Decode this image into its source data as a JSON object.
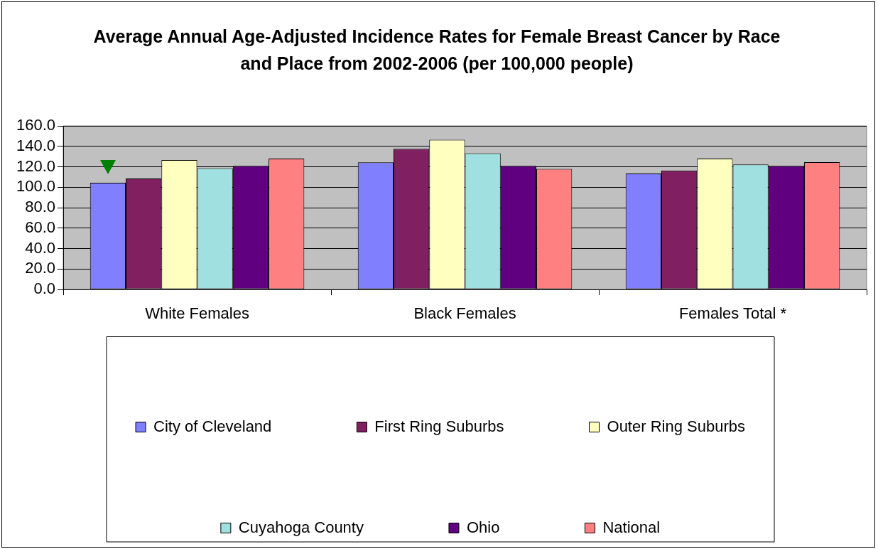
{
  "chart_data": {
    "type": "bar",
    "title": "Average Annual Age-Adjusted Incidence Rates for Female Breast Cancer by Race and Place from 2002-2006 (per 100,000 people)",
    "categories": [
      "White Females",
      "Black Females",
      "Females Total *"
    ],
    "series": [
      {
        "name": "City of Cleveland",
        "color": "#8080ff",
        "values": [
          104.3,
          124.4,
          113.4
        ]
      },
      {
        "name": "First Ring Suburbs",
        "color": "#802060",
        "values": [
          108.6,
          137.6,
          116.4
        ]
      },
      {
        "name": "Outer Ring Suburbs",
        "color": "#ffffc0",
        "values": [
          126.6,
          146.5,
          128.1
        ]
      },
      {
        "name": "Cuyahoga County",
        "color": "#a0e0e0",
        "values": [
          118.6,
          133.2,
          122.3
        ]
      },
      {
        "name": "Ohio",
        "color": "#600080",
        "values": [
          120.9,
          120.9,
          120.9
        ]
      },
      {
        "name": "National",
        "color": "#ff8080",
        "values": [
          128.1,
          118.0,
          124.6
        ]
      }
    ],
    "ylim": [
      0,
      160
    ],
    "yticks": [
      {
        "value": 0,
        "label": "0.0"
      },
      {
        "value": 20,
        "label": "20.0"
      },
      {
        "value": 40,
        "label": "40.0"
      },
      {
        "value": 60,
        "label": "60.0"
      },
      {
        "value": 80,
        "label": "80.0"
      },
      {
        "value": 100,
        "label": "100.0"
      },
      {
        "value": 120,
        "label": "120.0"
      },
      {
        "value": 140,
        "label": "140.0"
      },
      {
        "value": 160,
        "label": "160.0"
      }
    ],
    "grid": "y",
    "legend": "bottom"
  }
}
